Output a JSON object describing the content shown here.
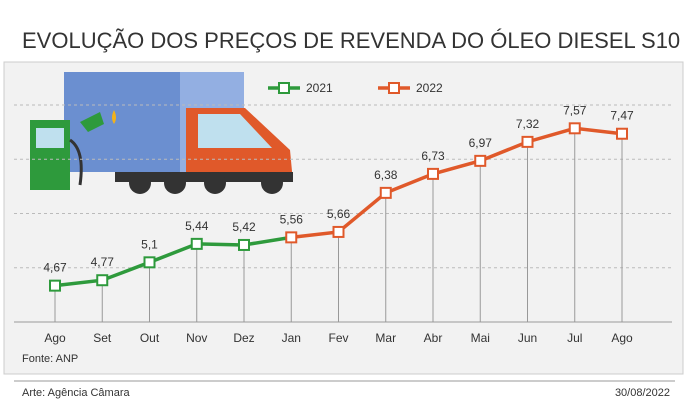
{
  "chart_data": {
    "type": "line",
    "title": "EVOLUÇÃO DOS PREÇOS DE REVENDA DO ÓLEO DIESEL S10",
    "categories": [
      "Ago",
      "Set",
      "Out",
      "Nov",
      "Dez",
      "Jan",
      "Fev",
      "Mar",
      "Abr",
      "Mai",
      "Jun",
      "Jul",
      "Ago"
    ],
    "series": [
      {
        "name": "2021",
        "color": "#2e9a3c",
        "values": [
          4.67,
          4.77,
          5.1,
          5.44,
          5.42,
          null,
          null,
          null,
          null,
          null,
          null,
          null,
          null
        ],
        "value_labels": [
          "4,67",
          "4,77",
          "5,1",
          "5,44",
          "5,42",
          null,
          null,
          null,
          null,
          null,
          null,
          null,
          null
        ]
      },
      {
        "name": "2022",
        "color": "#e0592a",
        "values": [
          null,
          null,
          null,
          null,
          null,
          5.56,
          5.66,
          6.38,
          6.73,
          6.97,
          7.32,
          7.57,
          7.47
        ],
        "value_labels": [
          null,
          null,
          null,
          null,
          null,
          "5,56",
          "5,66",
          "6,38",
          "6,73",
          "6,97",
          "7,32",
          "7,57",
          "7,47"
        ]
      }
    ],
    "ylim": [
      4,
      8.7
    ],
    "yticks": [
      5,
      6,
      7,
      8
    ],
    "grid": true,
    "source": "Fonte: ANP",
    "credit": "Arte: Agência Câmara",
    "date": "30/08/2022"
  }
}
